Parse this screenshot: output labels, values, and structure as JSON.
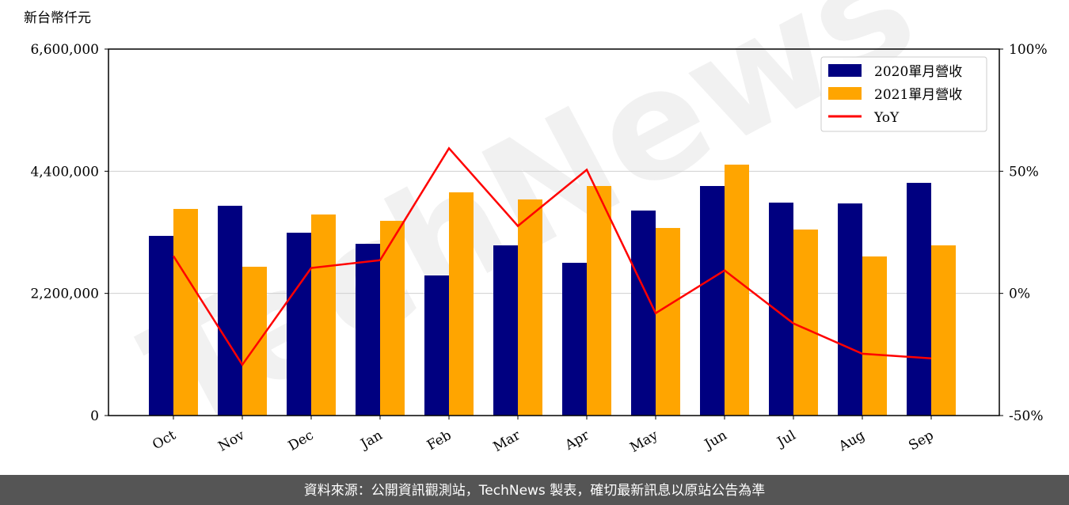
{
  "chart_data": {
    "type": "bar",
    "y_label": "新台幣仟元",
    "watermark": "TechNews",
    "footer": "資料來源：公開資訊觀測站，TechNews 製表，確切最新訊息以原站公告為準",
    "categories": [
      "Oct",
      "Nov",
      "Dec",
      "Jan",
      "Feb",
      "Mar",
      "Apr",
      "May",
      "Jun",
      "Jul",
      "Aug",
      "Sep"
    ],
    "series": [
      {
        "name": "2020單月營收",
        "color": "#000080",
        "values": [
          3236000,
          3778000,
          3293000,
          3093000,
          2523000,
          3065000,
          2751000,
          3692000,
          4134000,
          3835000,
          3820000,
          4191000
        ]
      },
      {
        "name": "2021單月營收",
        "color": "#ffa500",
        "values": [
          3721000,
          2680000,
          3621000,
          3507000,
          4020000,
          3892000,
          4134000,
          3378000,
          4519000,
          3350000,
          2865000,
          3065000
        ]
      },
      {
        "name": "YoY",
        "color": "#ff0000",
        "type": "line",
        "axis": "y2",
        "values": [
          15.3,
          -29.2,
          10.4,
          13.6,
          59.4,
          27.6,
          50.6,
          -8.1,
          9.4,
          -12.3,
          -24.7,
          -26.6
        ]
      }
    ],
    "ylim": [
      0,
      6600000
    ],
    "yticks": [
      0,
      {
        "value": 2200000,
        "label": "2,200,000"
      },
      {
        "value": 4400000,
        "label": "4,400,000"
      },
      {
        "value": 6600000,
        "label": "6,600,000"
      }
    ],
    "y2lim": [
      -50,
      100
    ],
    "y2ticks": [
      {
        "value": -50,
        "label": "-50%"
      },
      {
        "value": 0,
        "label": "0%"
      },
      {
        "value": 50,
        "label": "50%"
      },
      {
        "value": 100,
        "label": "100%"
      }
    ],
    "grid": true,
    "legend": "upper right"
  }
}
